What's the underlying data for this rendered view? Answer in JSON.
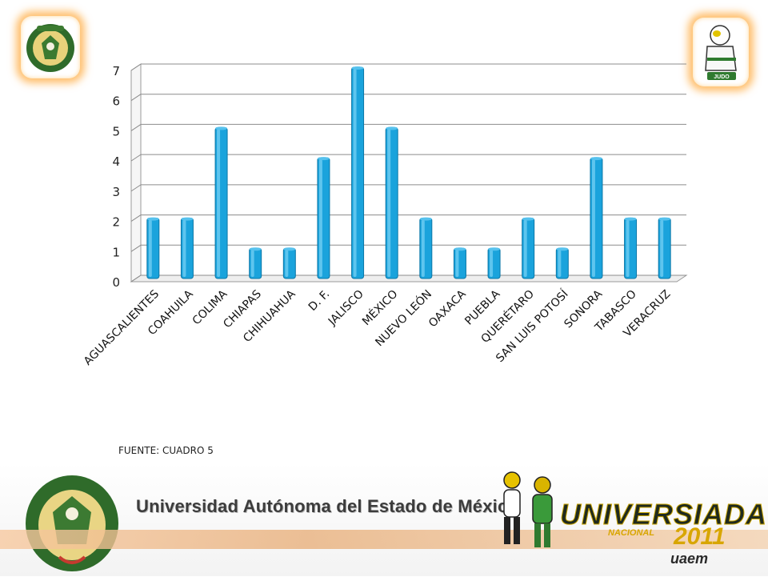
{
  "chart_data": {
    "type": "bar",
    "categories": [
      "AGUASCALIENTES",
      "COAHUILA",
      "COLIMA",
      "CHIAPAS",
      "CHIHUAHUA",
      "D. F.",
      "JALISCO",
      "MÉXICO",
      "NUEVO LEÓN",
      "OAXACA",
      "PUEBLA",
      "QUERÉTARO",
      "SAN LUIS POTOSÍ",
      "SONORA",
      "TABASCO",
      "VERACRUZ"
    ],
    "values": [
      2,
      2,
      5,
      1,
      1,
      4,
      7,
      5,
      2,
      1,
      1,
      2,
      1,
      4,
      2,
      2
    ],
    "ylim": [
      0,
      7
    ],
    "yticks": [
      0,
      1,
      2,
      3,
      4,
      5,
      6,
      7
    ],
    "grid": true,
    "bar_color": "#1aa3dc",
    "bar_edge_color": "#0b78a8"
  },
  "source_note": "FUENTE: CUADRO 5",
  "banner": {
    "university_name": "Universidad Autónoma del Estado de México",
    "event_logo_main": "UNIVERSIADA",
    "event_logo_nacional": "NACIONAL",
    "event_logo_year": "2011",
    "event_logo_uaem": "uaem"
  },
  "logos": {
    "left": "uaem-shield-icon",
    "right": "judo-mascot-icon",
    "right_caption": "JUDO"
  }
}
